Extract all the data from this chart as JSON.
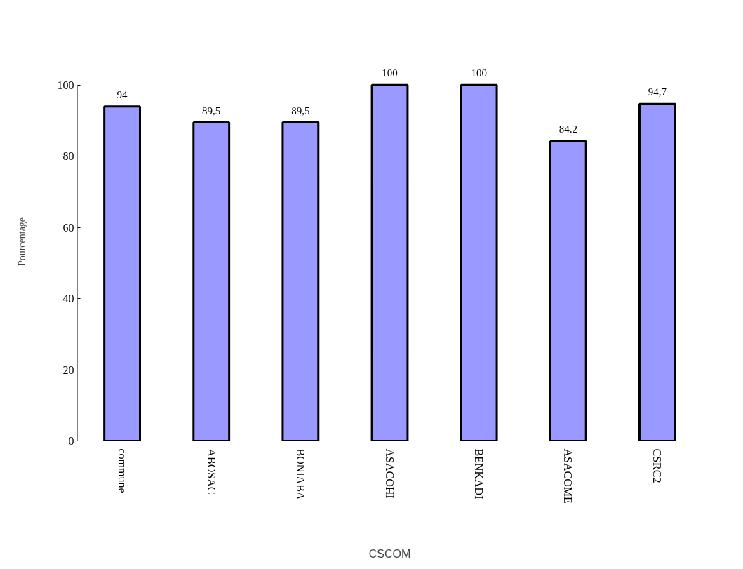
{
  "chart_data": {
    "type": "bar",
    "xlabel": "CSCOM",
    "ylabel": "Pourcentage",
    "categories": [
      "commune",
      "ABOSAC",
      "BONIABA",
      "ASACOHI",
      "BENKADI",
      "ASACOME",
      "CSRC2"
    ],
    "values": [
      94,
      89.5,
      89.5,
      100,
      100,
      84.2,
      94.7
    ],
    "value_labels": [
      "94",
      "89,5",
      "89,5",
      "100",
      "100",
      "84,2",
      "94,7"
    ],
    "color": "#9999ff",
    "ylim": [
      0,
      100
    ],
    "yticks": [
      0,
      20,
      40,
      60,
      80,
      100
    ],
    "grid": false
  }
}
